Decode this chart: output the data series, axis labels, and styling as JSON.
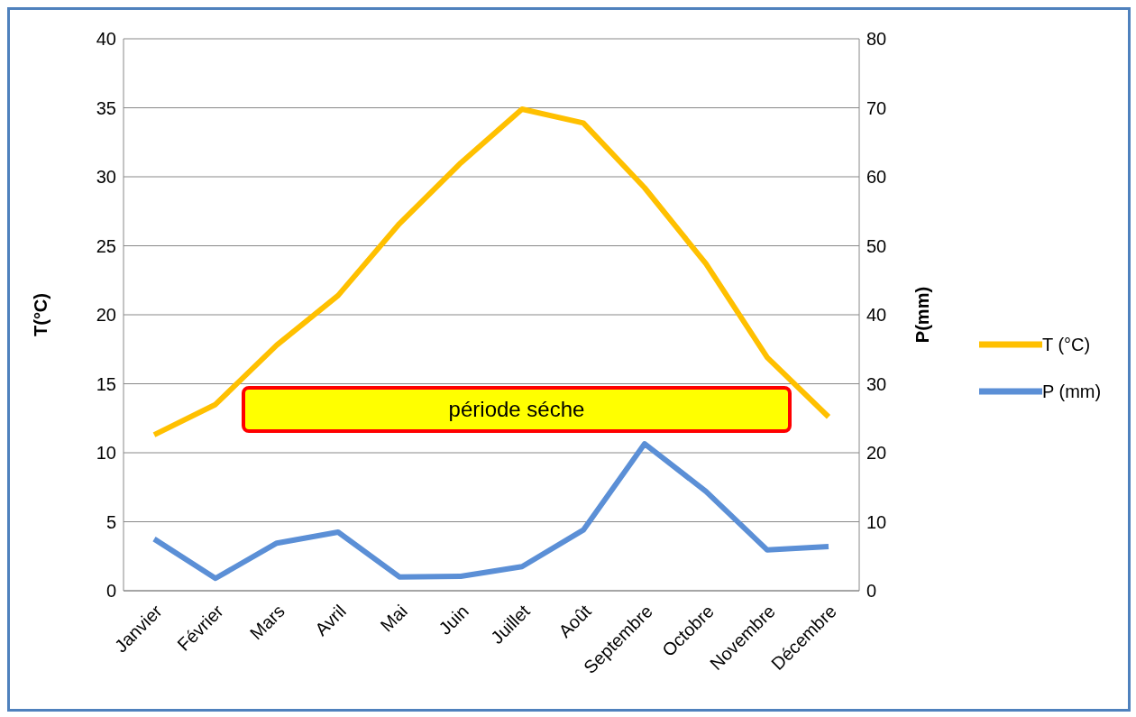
{
  "chart_data": {
    "type": "line",
    "categories": [
      "Janvier",
      "Février",
      "Mars",
      "Avril",
      "Mai",
      "Juin",
      "Juillet",
      "Août",
      "Septembre",
      "Octobre",
      "Novembre",
      "Décembre"
    ],
    "series": [
      {
        "name": "T (°C)",
        "color": "#ffc000",
        "values": [
          11.3,
          13.5,
          17.8,
          21.4,
          26.6,
          31.0,
          34.9,
          33.9,
          29.2,
          23.7,
          16.9,
          12.6
        ]
      },
      {
        "name": "P (mm)",
        "color": "#5b8fd6",
        "axis": "y2",
        "values": [
          7.5,
          1.8,
          6.9,
          8.5,
          2.0,
          2.1,
          3.5,
          8.8,
          21.3,
          14.4,
          5.9,
          6.4
        ]
      }
    ],
    "ylabel": "T(°C)",
    "y2label": "P(mm)",
    "ylim": [
      0,
      40
    ],
    "yticks": [
      0,
      5,
      10,
      15,
      20,
      25,
      30,
      35,
      40
    ],
    "y2lim": [
      0,
      80
    ],
    "y2ticks": [
      0,
      10,
      20,
      30,
      40,
      50,
      60,
      70,
      80
    ],
    "annotations": [
      "période séche"
    ],
    "grid": "y",
    "legend": "right",
    "marker": "none",
    "line_style": "solid"
  }
}
